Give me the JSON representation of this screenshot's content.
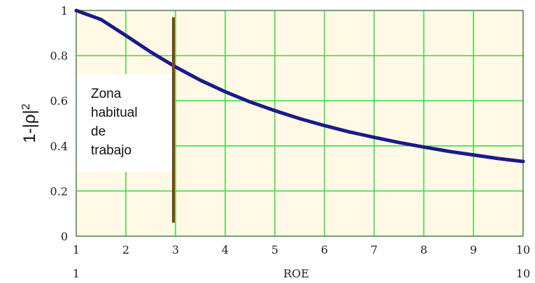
{
  "chart_data": {
    "type": "line",
    "title": "",
    "xlabel": "ROE",
    "ylabel": "1-|ρ|",
    "ylabel_exponent": "2",
    "xlim": [
      1,
      10
    ],
    "ylim": [
      0,
      1
    ],
    "x_ticks": [
      "1",
      "2",
      "3",
      "4",
      "5",
      "6",
      "7",
      "8",
      "9",
      "10"
    ],
    "y_ticks": [
      "0",
      "0.2",
      "0.4",
      "0.6",
      "0.8",
      "1"
    ],
    "x_range_start_label": "1",
    "x_range_end_label": "10",
    "grid": true,
    "grid_color": "#33dd33",
    "plot_background": "#fff9e6",
    "series": [
      {
        "color": "#1a1a8c",
        "x": [
          1,
          1.5,
          2,
          2.5,
          3,
          3.5,
          4,
          4.5,
          5,
          5.5,
          6,
          6.5,
          7,
          7.5,
          8,
          8.5,
          9,
          9.5,
          10
        ],
        "y": [
          1.0,
          0.96,
          0.889,
          0.816,
          0.75,
          0.691,
          0.64,
          0.595,
          0.556,
          0.521,
          0.49,
          0.462,
          0.438,
          0.415,
          0.395,
          0.376,
          0.36,
          0.344,
          0.331
        ]
      }
    ],
    "marker_line": {
      "x": 3,
      "y_from": 0.06,
      "y_to": 0.97,
      "color": "#8b3a1a"
    },
    "annotation": {
      "lines": [
        "Zona",
        "habitual",
        "de",
        "trabajo"
      ]
    }
  }
}
